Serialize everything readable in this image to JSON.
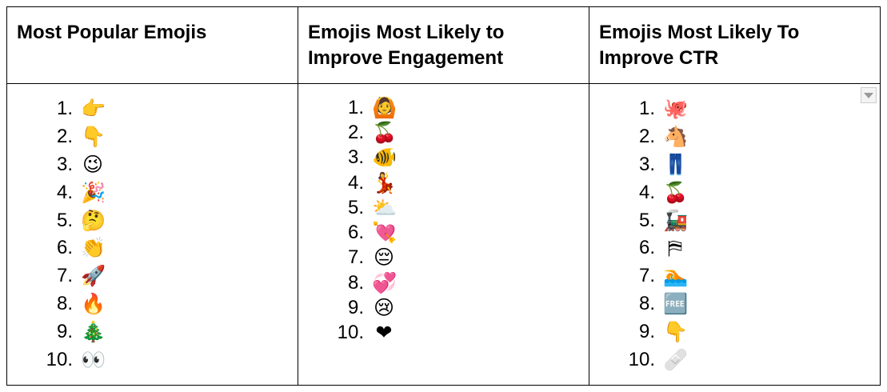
{
  "table": {
    "headers": [
      "Most Popular Emojis",
      "Emojis Most Likely to Improve Engagement",
      "Emojis Most Likely To Improve CTR"
    ],
    "columns": [
      {
        "items": [
          {
            "num": "1.",
            "emoji": "👉",
            "icon": "pointing-right-icon"
          },
          {
            "num": "2.",
            "emoji": "👇",
            "icon": "pointing-down-icon"
          },
          {
            "num": "3.",
            "emoji": "😉",
            "icon": "winking-face-icon"
          },
          {
            "num": "4.",
            "emoji": "🎉",
            "icon": "party-popper-icon"
          },
          {
            "num": "5.",
            "emoji": "🤔",
            "icon": "thinking-face-icon"
          },
          {
            "num": "6.",
            "emoji": "👏",
            "icon": "clapping-hands-icon"
          },
          {
            "num": "7.",
            "emoji": "🚀",
            "icon": "rocket-icon"
          },
          {
            "num": "8.",
            "emoji": "🔥",
            "icon": "fire-icon"
          },
          {
            "num": "9.",
            "emoji": "🎄",
            "icon": "christmas-tree-icon"
          },
          {
            "num": "10.",
            "emoji": "👀",
            "icon": "eyes-icon"
          }
        ]
      },
      {
        "items": [
          {
            "num": "1.",
            "emoji": "🙆",
            "icon": "person-gesturing-ok-icon"
          },
          {
            "num": "2.",
            "emoji": "🍒",
            "icon": "cherries-icon"
          },
          {
            "num": "3.",
            "emoji": "🐠",
            "icon": "tropical-fish-icon"
          },
          {
            "num": "4.",
            "emoji": "💃",
            "icon": "dancer-icon"
          },
          {
            "num": "5.",
            "emoji": "⛅",
            "icon": "sun-behind-cloud-icon"
          },
          {
            "num": "6.",
            "emoji": "💘",
            "icon": "heart-with-arrow-icon"
          },
          {
            "num": "7.",
            "emoji": "😔",
            "icon": "pensive-face-icon"
          },
          {
            "num": "8.",
            "emoji": "💞",
            "icon": "revolving-hearts-icon"
          },
          {
            "num": "9.",
            "emoji": "😢",
            "icon": "crying-face-icon"
          },
          {
            "num": "10.",
            "emoji": "❤",
            "icon": "red-heart-icon"
          }
        ]
      },
      {
        "items": [
          {
            "num": "1.",
            "emoji": "🐙",
            "icon": "octopus-icon"
          },
          {
            "num": "2.",
            "emoji": "🐴",
            "icon": "horse-face-icon"
          },
          {
            "num": "3.",
            "emoji": "👖",
            "icon": "jeans-icon"
          },
          {
            "num": "4.",
            "emoji": "🍒",
            "icon": "cherries-icon"
          },
          {
            "num": "5.",
            "emoji": "🚂",
            "icon": "locomotive-icon"
          },
          {
            "num": "6.",
            "emoji": "⛿",
            "icon": "white-flag-icon"
          },
          {
            "num": "7.",
            "emoji": "🏊",
            "icon": "swimming-pool-icon"
          },
          {
            "num": "8.",
            "emoji": "🆓",
            "icon": "free-button-icon"
          },
          {
            "num": "9.",
            "emoji": "👇",
            "icon": "pointing-down-icon"
          },
          {
            "num": "10.",
            "emoji": "🩹",
            "icon": "adhesive-bandage-icon"
          }
        ]
      }
    ]
  }
}
